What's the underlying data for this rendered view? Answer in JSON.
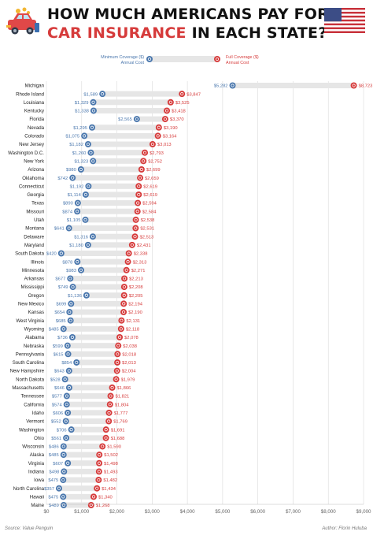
{
  "header": {
    "title_line1": "HOW MUCH AMERICANS PAY FOR",
    "title_line2_a": "CAR INSURANCE",
    "title_line2_b": " IN EACH STATE?"
  },
  "legend": {
    "min_label_1": "Minimum Coverage ($)",
    "min_label_2": "Annual Cost",
    "full_label_1": "Full Coverage ($)",
    "full_label_2": "Annual Cost"
  },
  "footer": {
    "source": "Source: Value Penguin",
    "author": "Author: Florin Huluba"
  },
  "colors": {
    "minimum": "#4a77ad",
    "full": "#d63b3b",
    "range_bar": "#e6e6e6",
    "gridline": "#d9d9d9"
  },
  "icons": [
    "car-icon",
    "us-flag-icon"
  ],
  "chart_data": {
    "type": "dumbbell",
    "x_ticks": [
      "$0",
      "$1,000",
      "$2,000",
      "$3,000",
      "$4,000",
      "$5,000",
      "$6,000",
      "$7,000",
      "$8,000",
      "$9,000"
    ],
    "xlim": [
      0,
      9000
    ],
    "grid": true,
    "categories": [
      "Michigan",
      "Rhode Island",
      "Louisiana",
      "Kentucky",
      "Florida",
      "Nevada",
      "Colorado",
      "New Jersey",
      "Washington D.C.",
      "New York",
      "Arizona",
      "Oklahoma",
      "Connecticut",
      "Georgia",
      "Texas",
      "Missouri",
      "Utah",
      "Montana",
      "Delaware",
      "Maryland",
      "South Dakota",
      "Illinois",
      "Minnesota",
      "Arkansas",
      "Mississippi",
      "Oregon",
      "New Mexico",
      "Kansas",
      "West Virginia",
      "Wyoming",
      "Alabama",
      "Nebraska",
      "Pennsylvania",
      "South Carolina",
      "New Hampshire",
      "North Dakota",
      "Massachusetts",
      "Tennessee",
      "California",
      "Idaho",
      "Vermont",
      "Washington",
      "Ohio",
      "Wisconsin",
      "Alaska",
      "Virginia",
      "Indiana",
      "Iowa",
      "North Carolina",
      "Hawaii",
      "Maine"
    ],
    "series": [
      {
        "name": "Minimum Coverage ($) Annual Cost",
        "values": [
          5282,
          1589,
          1329,
          1338,
          2565,
          1295,
          1075,
          1182,
          1260,
          1323,
          980,
          742,
          1192,
          1114,
          890,
          874,
          1105,
          641,
          1316,
          1180,
          420,
          878,
          983,
          677,
          749,
          1136,
          699,
          654,
          685,
          485,
          736,
          599,
          615,
          854,
          643,
          528,
          646,
          577,
          574,
          606,
          552,
          706,
          561,
          486,
          485,
          607,
          498,
          475,
          357,
          475,
          489
        ],
        "labels": [
          "$5,282",
          "$1,589",
          "$1,329",
          "$1,338",
          "$2,565",
          "$1,295",
          "$1,075",
          "$1,182",
          "$1,260",
          "$1,323",
          "$980",
          "$742",
          "$1,192",
          "$1,114",
          "$890",
          "$874",
          "$1,105",
          "$641",
          "$1,316",
          "$1,180",
          "$420",
          "$878",
          "$983",
          "$677",
          "$749",
          "$1,136",
          "$699",
          "$654",
          "$685",
          "$485",
          "$736",
          "$599",
          "$615",
          "$854",
          "$643",
          "$528",
          "$646",
          "$577",
          "$574",
          "$606",
          "$552",
          "$706",
          "$561",
          "$486",
          "$485",
          "$607",
          "$498",
          "$475",
          "$357",
          "$475",
          "$489"
        ]
      },
      {
        "name": "Full Coverage ($) Annual Cost",
        "values": [
          8723,
          3847,
          3525,
          3418,
          3370,
          3190,
          3164,
          3013,
          2793,
          2752,
          2699,
          2659,
          2619,
          2619,
          2594,
          2584,
          2538,
          2531,
          2513,
          2431,
          2338,
          2313,
          2271,
          2213,
          2208,
          2205,
          2194,
          2190,
          2131,
          2118,
          2078,
          2038,
          2018,
          2013,
          2004,
          1979,
          1866,
          1821,
          1804,
          1777,
          1769,
          1691,
          1688,
          1590,
          1502,
          1498,
          1493,
          1482,
          1434,
          1340,
          1268
        ],
        "labels": [
          "$8,723",
          "$3,847",
          "$3,525",
          "$3,418",
          "$3,370",
          "$3,190",
          "$3,164",
          "$3,013",
          "$2,793",
          "$2,752",
          "$2,699",
          "$2,659",
          "$2,619",
          "$2,619",
          "$2,594",
          "$2,584",
          "$2,538",
          "$2,531",
          "$2,513",
          "$2,431",
          "$2,338",
          "$2,313",
          "$2,271",
          "$2,213",
          "$2,208",
          "$2,205",
          "$2,194",
          "$2,190",
          "$2,131",
          "$2,118",
          "$2,078",
          "$2,038",
          "$2,018",
          "$2,013",
          "$2,004",
          "$1,979",
          "$1,866",
          "$1,821",
          "$1,804",
          "$1,777",
          "$1,769",
          "$1,691",
          "$1,688",
          "$1,590",
          "$1,502",
          "$1,498",
          "$1,493",
          "$1,482",
          "$1,434",
          "$1,340",
          "$1,268"
        ]
      }
    ]
  }
}
